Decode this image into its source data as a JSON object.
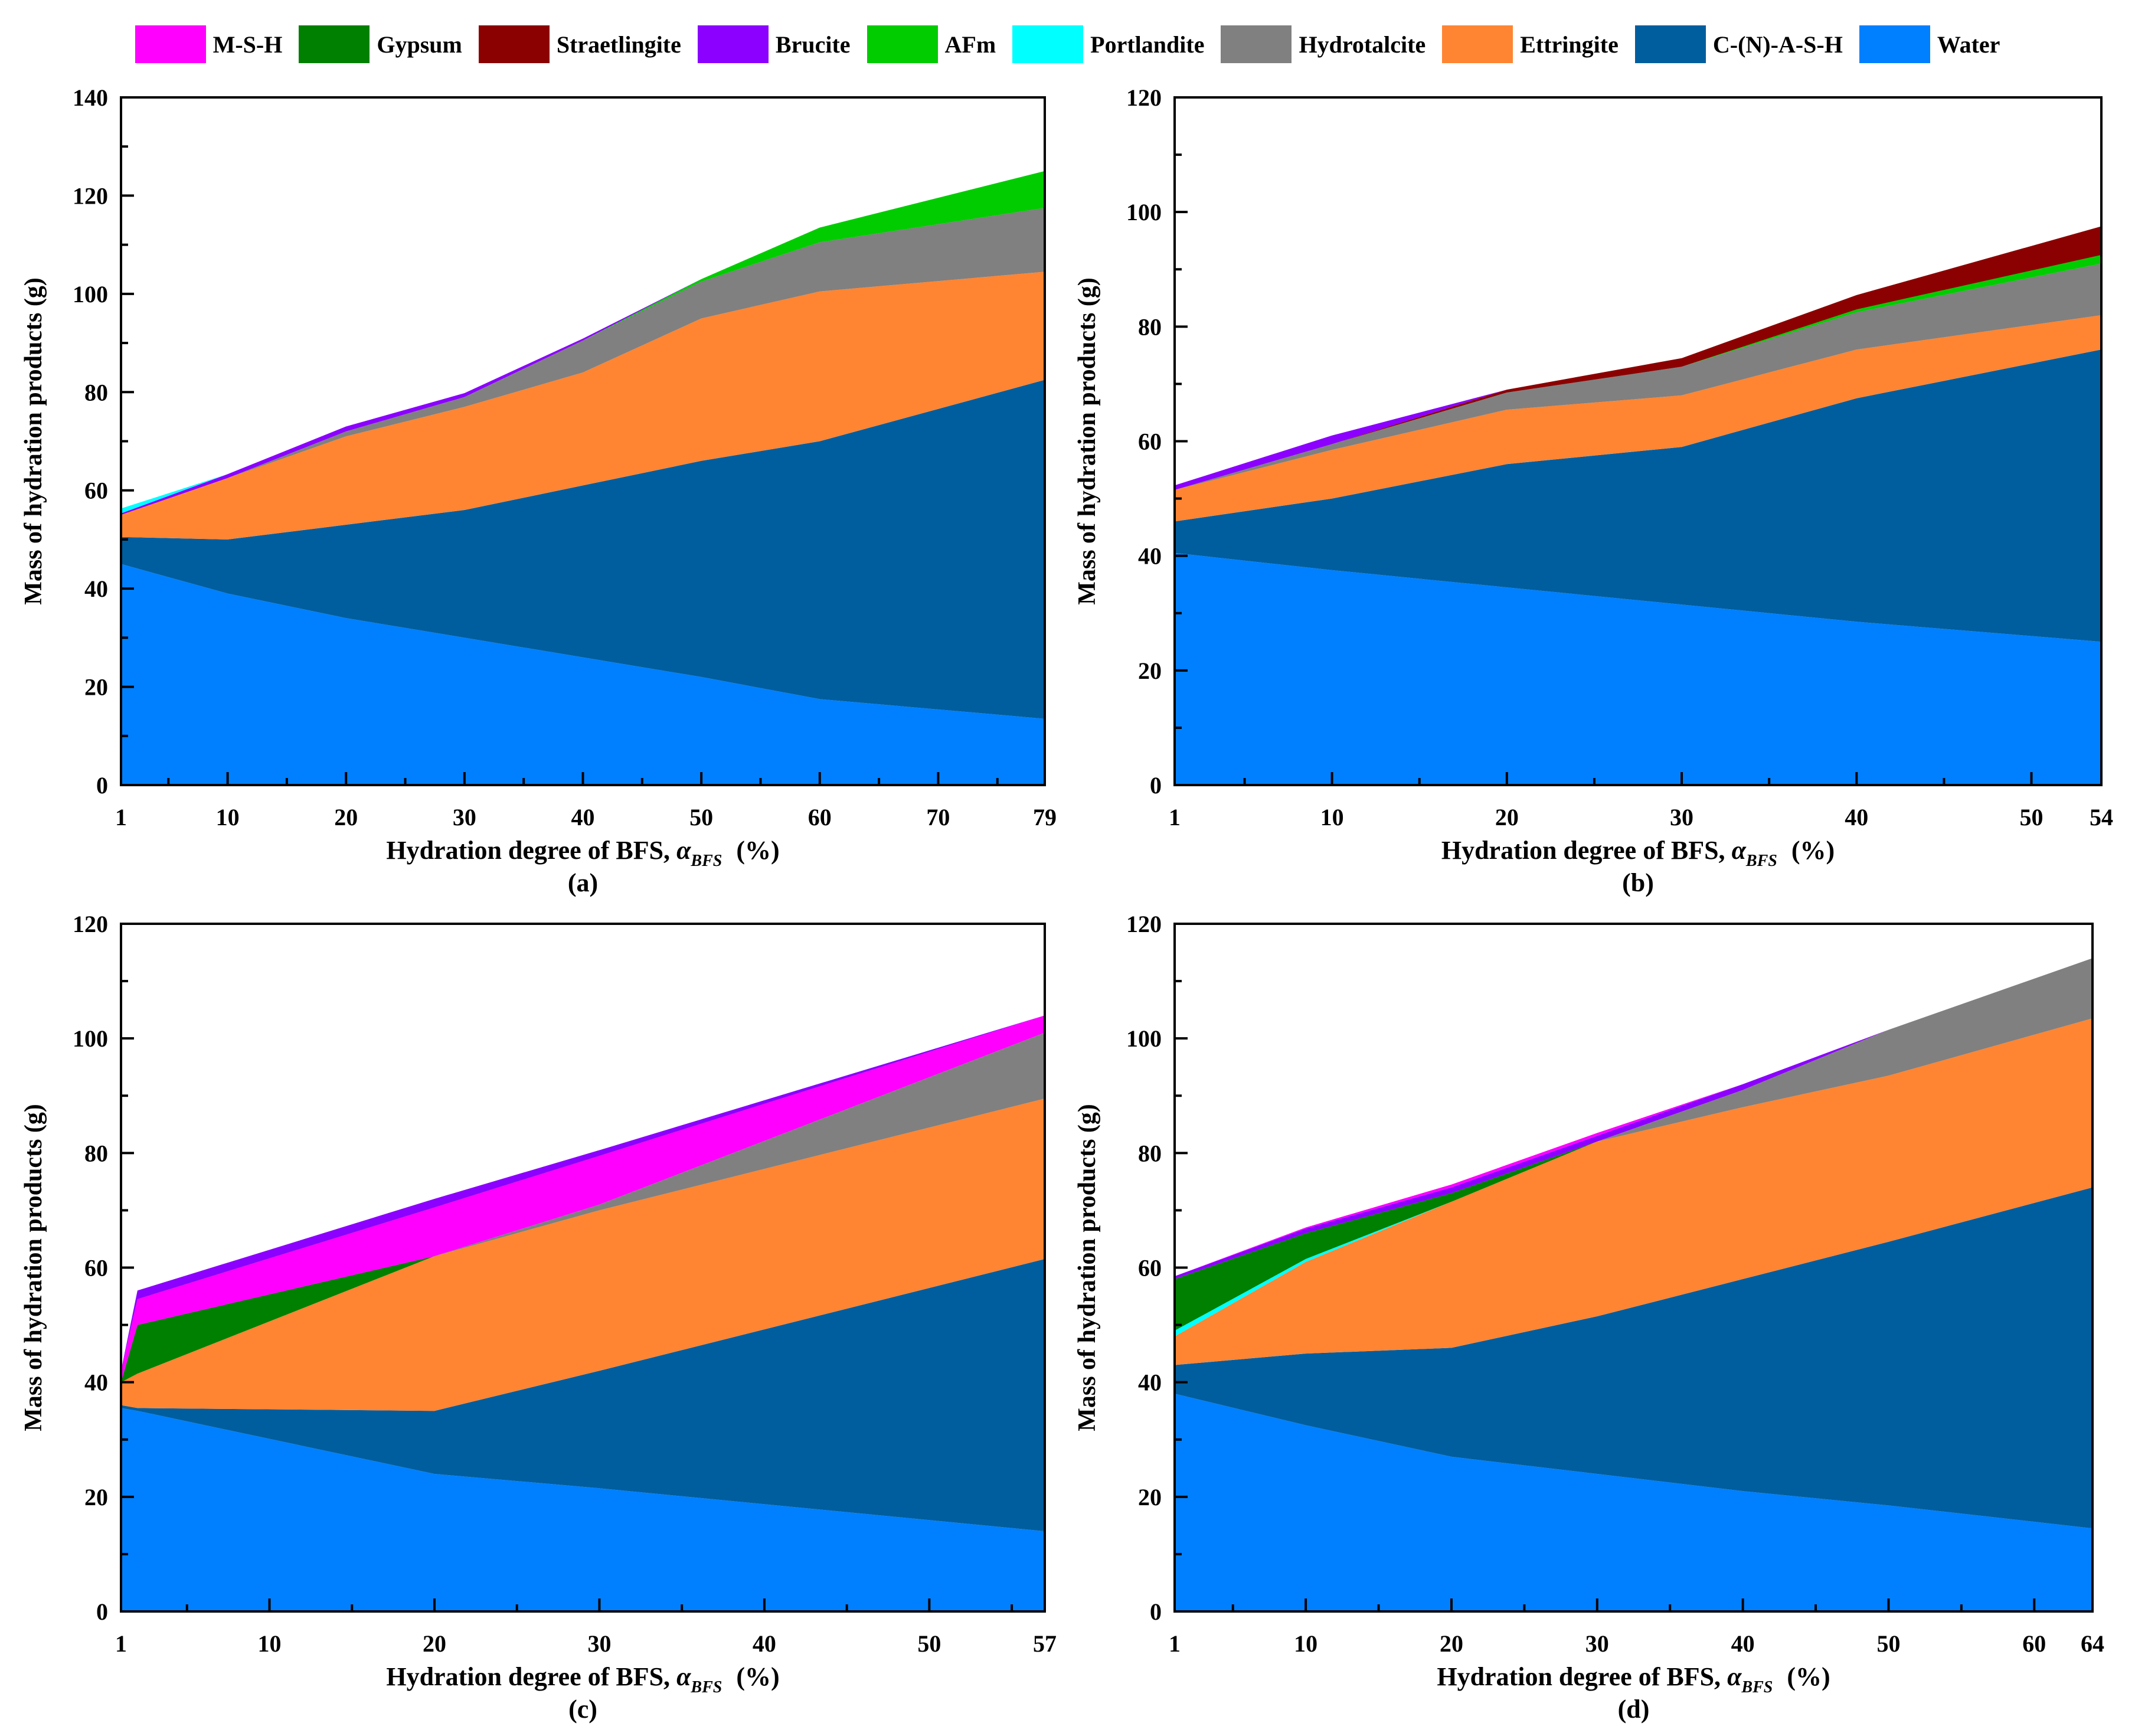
{
  "legend": [
    {
      "name": "M-S-H",
      "color": "#FF00FF"
    },
    {
      "name": "Gypsum",
      "color": "#008000"
    },
    {
      "name": "Straetlingite",
      "color": "#8B0000"
    },
    {
      "name": "Brucite",
      "color": "#8B00FF"
    },
    {
      "name": "AFm",
      "color": "#00CC00"
    },
    {
      "name": "Portlandite",
      "color": "#00FFFF"
    },
    {
      "name": "Hydrotalcite",
      "color": "#808080"
    },
    {
      "name": "Ettringite",
      "color": "#FF8533"
    },
    {
      "name": "C-(N)-A-S-H",
      "color": "#005E9E"
    },
    {
      "name": "Water",
      "color": "#0080FF"
    }
  ],
  "chart_data": [
    {
      "panel": "(a)",
      "type": "area",
      "xlabel_main": "Hydration degree of BFS, ",
      "xlabel_symbol": "α",
      "xlabel_sub": "BFS",
      "xlabel_unit": "(%)",
      "ylabel": "Mass of hydration products (g)",
      "xlim": [
        1,
        79
      ],
      "ylim": [
        0,
        140
      ],
      "yticks": [
        0,
        20,
        40,
        60,
        80,
        100,
        120,
        140
      ],
      "xticks": [
        1,
        10,
        20,
        30,
        40,
        50,
        60,
        70,
        79
      ],
      "x": [
        1,
        10,
        20,
        30,
        40,
        50,
        60,
        79
      ],
      "series": [
        {
          "name": "Water",
          "values": [
            45,
            39,
            34,
            30,
            26,
            22,
            17.5,
            13.5
          ]
        },
        {
          "name": "C-(N)-A-S-H",
          "values": [
            5.5,
            11,
            19,
            26,
            35,
            44,
            52.5,
            69
          ]
        },
        {
          "name": "Ettringite",
          "values": [
            4.5,
            12.5,
            18,
            21,
            23,
            29,
            30.5,
            22
          ]
        },
        {
          "name": "Hydrotalcite",
          "values": [
            0,
            0,
            1,
            2,
            6.5,
            7.5,
            10,
            13
          ]
        },
        {
          "name": "AFm",
          "values": [
            0,
            0,
            0,
            0,
            0,
            0.5,
            3,
            7.5
          ]
        },
        {
          "name": "Brucite",
          "values": [
            0.3,
            0.8,
            1,
            0.8,
            0.4,
            0,
            0,
            0
          ]
        },
        {
          "name": "Portlandite",
          "values": [
            1,
            0,
            0,
            0,
            0,
            0,
            0,
            0
          ]
        }
      ]
    },
    {
      "panel": "(b)",
      "type": "area",
      "xlabel_main": "Hydration degree of BFS, ",
      "xlabel_symbol": "α",
      "xlabel_sub": "BFS",
      "xlabel_unit": "(%)",
      "ylabel": "Mass of hydration products (g)",
      "xlim": [
        1,
        54
      ],
      "ylim": [
        0,
        120
      ],
      "yticks": [
        0,
        20,
        40,
        60,
        80,
        100,
        120
      ],
      "xticks": [
        1,
        10,
        20,
        30,
        40,
        50,
        54
      ],
      "x": [
        1,
        10,
        20,
        30,
        40,
        54
      ],
      "series": [
        {
          "name": "Water",
          "values": [
            40.5,
            37.5,
            34.5,
            31.5,
            28.5,
            25
          ]
        },
        {
          "name": "C-(N)-A-S-H",
          "values": [
            5.5,
            12.5,
            21.5,
            27.5,
            39,
            51
          ]
        },
        {
          "name": "Ettringite",
          "values": [
            5.5,
            8.5,
            9.5,
            9,
            8.5,
            6
          ]
        },
        {
          "name": "Hydrotalcite",
          "values": [
            0,
            1,
            3,
            5,
            6.5,
            9
          ]
        },
        {
          "name": "AFm",
          "values": [
            0,
            0,
            0,
            0,
            0.5,
            1.5
          ]
        },
        {
          "name": "Straetlingite",
          "values": [
            0,
            0,
            0.5,
            1.5,
            2.5,
            5
          ]
        },
        {
          "name": "Brucite",
          "values": [
            0.8,
            1.5,
            0,
            0,
            0,
            0
          ]
        }
      ]
    },
    {
      "panel": "(c)",
      "type": "area",
      "xlabel_main": "Hydration degree of BFS, ",
      "xlabel_symbol": "α",
      "xlabel_sub": "BFS",
      "xlabel_unit": "(%)",
      "ylabel": "Mass of hydration products (g)",
      "xlim": [
        1,
        57
      ],
      "ylim": [
        0,
        120
      ],
      "yticks": [
        0,
        20,
        40,
        60,
        80,
        100,
        120
      ],
      "xticks": [
        1,
        10,
        20,
        30,
        40,
        50,
        57
      ],
      "x": [
        1,
        2,
        20,
        30,
        57
      ],
      "series": [
        {
          "name": "Water",
          "values": [
            35.5,
            35,
            24,
            21.5,
            14
          ]
        },
        {
          "name": "C-(N)-A-S-H",
          "values": [
            0.5,
            0.5,
            11,
            20.5,
            47.5
          ]
        },
        {
          "name": "Ettringite",
          "values": [
            4,
            6,
            27,
            28,
            28
          ]
        },
        {
          "name": "Hydrotalcite",
          "values": [
            0,
            0,
            0,
            1,
            11.5
          ]
        },
        {
          "name": "Gypsum",
          "values": [
            0,
            8.5,
            0,
            0,
            0
          ]
        },
        {
          "name": "M-S-H",
          "values": [
            2,
            4.5,
            8.5,
            8.5,
            3
          ]
        },
        {
          "name": "Brucite",
          "values": [
            0,
            1.5,
            1.5,
            1,
            0
          ]
        }
      ]
    },
    {
      "panel": "(d)",
      "type": "area",
      "xlabel_main": "Hydration degree of BFS, ",
      "xlabel_symbol": "α",
      "xlabel_sub": "BFS",
      "xlabel_unit": "(%)",
      "ylabel": "Mass of hydration products (g)",
      "xlim": [
        1,
        64
      ],
      "ylim": [
        0,
        120
      ],
      "yticks": [
        0,
        20,
        40,
        60,
        80,
        100,
        120
      ],
      "xticks": [
        1,
        10,
        20,
        30,
        40,
        50,
        60,
        64
      ],
      "x": [
        1,
        10,
        20,
        30,
        40,
        50,
        64
      ],
      "series": [
        {
          "name": "Water",
          "values": [
            38,
            32.5,
            27,
            24,
            21,
            18.5,
            14.5
          ]
        },
        {
          "name": "C-(N)-A-S-H",
          "values": [
            5,
            12.5,
            19,
            27.5,
            37,
            46,
            59.5
          ]
        },
        {
          "name": "Ettringite",
          "values": [
            5,
            16,
            25.5,
            30.5,
            30,
            29,
            29.5
          ]
        },
        {
          "name": "Portlandite",
          "values": [
            1,
            0.5,
            0,
            0,
            0,
            0,
            0
          ]
        },
        {
          "name": "Hydrotalcite",
          "values": [
            0,
            0,
            0,
            0,
            3,
            8,
            10.5
          ]
        },
        {
          "name": "Gypsum",
          "values": [
            9,
            4.5,
            1.5,
            0,
            0,
            0,
            0
          ]
        },
        {
          "name": "Brucite",
          "values": [
            0.5,
            0.8,
            1,
            1,
            1,
            0,
            0
          ]
        },
        {
          "name": "M-S-H",
          "values": [
            0,
            0.2,
            0.5,
            0.5,
            0,
            0,
            0
          ]
        }
      ]
    }
  ]
}
